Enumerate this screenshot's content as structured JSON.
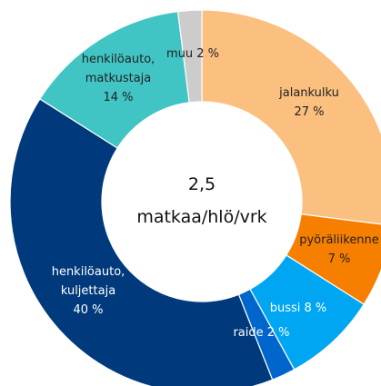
{
  "chart_data": {
    "type": "donut",
    "center_text": [
      "2,5",
      "matkaa/hlö/vrk"
    ],
    "categories": [
      "jalankulku",
      "pyöräliikenne",
      "bussi",
      "raide",
      "henkilöauto, kuljettaja",
      "henkilöauto, matkustaja",
      "muu"
    ],
    "values": [
      27,
      7,
      8,
      2,
      40,
      14,
      2
    ],
    "value_labels": [
      "27 %",
      "7 %",
      "8 %",
      "2 %",
      "40 %",
      "14 %",
      "2 %"
    ],
    "colors": [
      "#fbbf80",
      "#f77f00",
      "#00a6f2",
      "#0066cc",
      "#003a7d",
      "#40c4c4",
      "#cccccc"
    ]
  }
}
